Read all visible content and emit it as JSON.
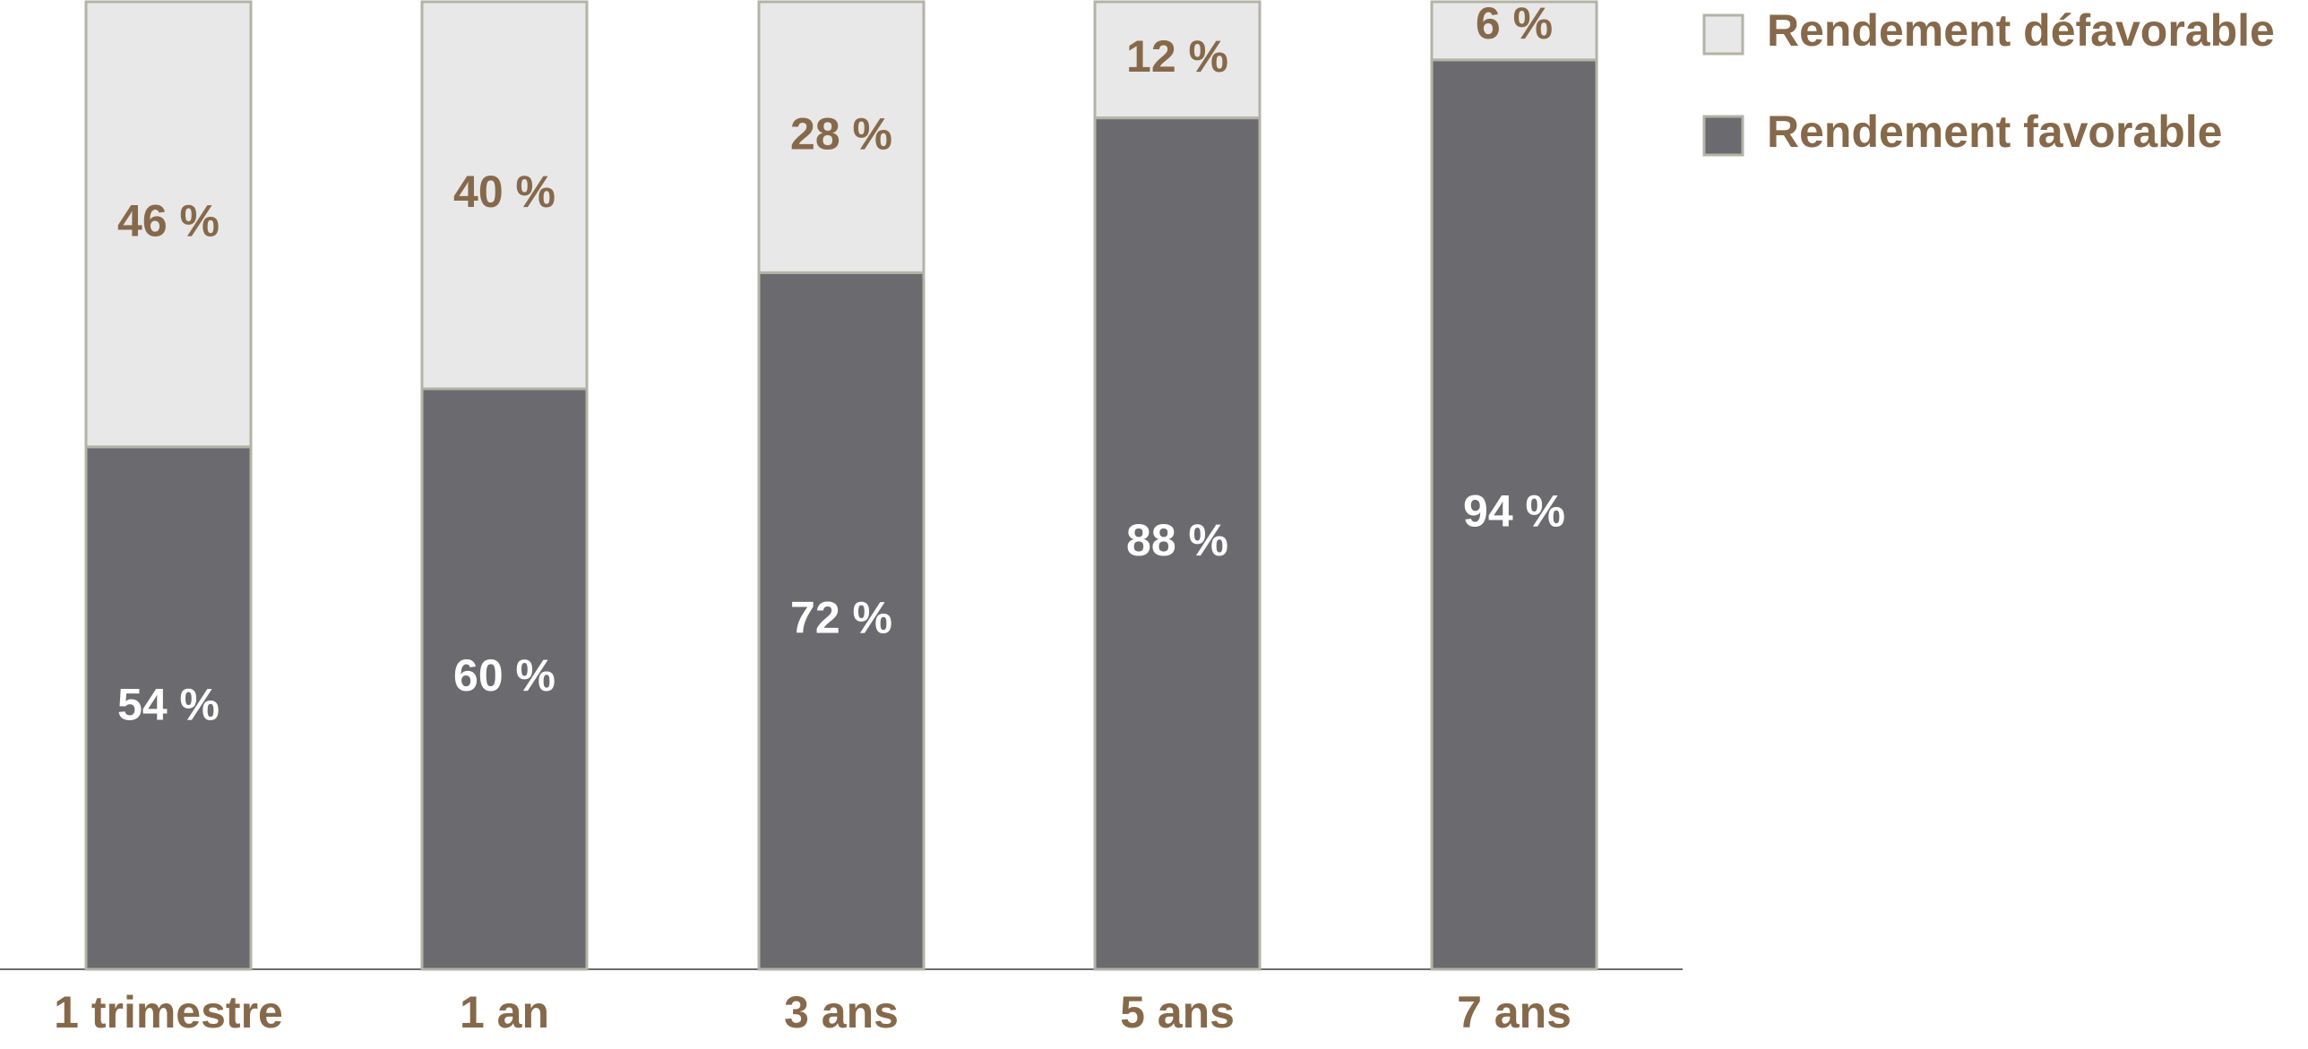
{
  "chart_data": {
    "type": "stacked_bar",
    "categories": [
      "1 trimestre",
      "1 an",
      "3 ans",
      "5 ans",
      "7 ans"
    ],
    "series": [
      {
        "name": "Rendement favorable",
        "color": "#6b6b6f",
        "values": [
          54,
          60,
          72,
          88,
          94
        ],
        "value_labels": [
          "54 %",
          "60 %",
          "72 %",
          "88 %",
          "94 %"
        ]
      },
      {
        "name": "Rendement défavorable",
        "color": "#e8e8e8",
        "values": [
          46,
          40,
          28,
          12,
          6
        ],
        "value_labels": [
          "46 %",
          "40 %",
          "28 %",
          "12 %",
          "6 %"
        ]
      }
    ],
    "ylim": [
      0,
      100
    ]
  }
}
